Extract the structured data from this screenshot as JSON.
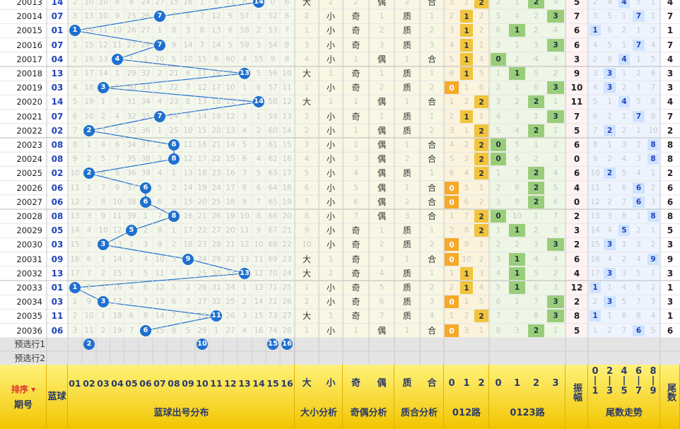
{
  "header": {
    "sort_label": "排序",
    "period_label": "期号",
    "blue_label": "蓝球",
    "blue_dist_label": "蓝球出号分布",
    "size_label": "大小分析",
    "oddeven_label": "奇偶分析",
    "primecomp_label": "质合分析",
    "route012_label": "012路",
    "route0123_label": "0123路",
    "amplitude_label": "振幅",
    "tail_trend_label": "尾数走势",
    "tail_label": "尾数",
    "ball_numbers": [
      "01",
      "02",
      "03",
      "04",
      "05",
      "06",
      "07",
      "08",
      "09",
      "10",
      "11",
      "12",
      "13",
      "14",
      "15",
      "16"
    ],
    "size_cols": [
      "大",
      "小"
    ],
    "oddeven_cols": [
      "奇",
      "偶"
    ],
    "primecomp_cols": [
      "质",
      "合"
    ],
    "route012_cols": [
      "0",
      "1",
      "2"
    ],
    "route0123_cols": [
      "0",
      "1",
      "2",
      "3"
    ],
    "tail_groups": [
      [
        "0",
        "1"
      ],
      [
        "2",
        "3"
      ],
      [
        "4",
        "5"
      ],
      [
        "6",
        "7"
      ],
      [
        "8",
        "9"
      ]
    ]
  },
  "rows": [
    {
      "period": "20013",
      "blue": "14",
      "nums": [
        2,
        10,
        10,
        8,
        8,
        24,
        27,
        15,
        16,
        1,
        6,
        11,
        8,
        14,
        0,
        6
      ],
      "size": "大",
      "sz_miss": "2",
      "oe": "偶",
      "oe_miss": "2",
      "pc": "合",
      "pc_miss": "2",
      "r012": [
        3,
        1,
        2
      ],
      "r0123": [
        2,
        1,
        2,
        9
      ],
      "amp": "5",
      "tails": [
        2,
        4,
        4,
        5,
        1
      ],
      "tail": "4"
    },
    {
      "period": "20014",
      "blue": "07",
      "nums": [
        3,
        13,
        10,
        9,
        25,
        26,
        0,
        7,
        8,
        7,
        12,
        5,
        57,
        1,
        52,
        6
      ],
      "size": "小",
      "sz_miss": "2",
      "oe": "奇",
      "oe_miss": "1",
      "pc": "质",
      "pc_miss": "1",
      "r012": [
        2,
        1,
        2
      ],
      "r0123": [
        5,
        4,
        2,
        3
      ],
      "amp": "7",
      "tails": [
        3,
        5,
        1,
        7,
        1
      ],
      "tail": "7"
    },
    {
      "period": "20015",
      "blue": "01",
      "nums": [
        0,
        14,
        11,
        10,
        26,
        27,
        1,
        8,
        3,
        8,
        13,
        6,
        58,
        2,
        53,
        7
      ],
      "size": "小",
      "sz_miss": "1",
      "oe": "奇",
      "oe_miss": "2",
      "pc": "质",
      "pc_miss": "2",
      "r012": [
        3,
        1,
        2
      ],
      "r0123": [
        6,
        1,
        2,
        4
      ],
      "amp": "6",
      "tails": [
        1,
        6,
        2,
        1,
        3
      ],
      "tail": "1"
    },
    {
      "period": "20016",
      "blue": "07",
      "nums": [
        1,
        15,
        12,
        11,
        27,
        28,
        0,
        9,
        14,
        7,
        14,
        5,
        59,
        3,
        54,
        8
      ],
      "size": "小",
      "sz_miss": "3",
      "oe": "奇",
      "oe_miss": "3",
      "pc": "质",
      "pc_miss": "3",
      "r012": [
        4,
        1,
        1
      ],
      "r0123": [
        3,
        1,
        3,
        3
      ],
      "amp": "6",
      "tails": [
        4,
        5,
        1,
        7,
        4
      ],
      "tail": "7"
    },
    {
      "period": "20017",
      "blue": "04",
      "nums": [
        2,
        16,
        13,
        0,
        1,
        1,
        20,
        5,
        10,
        15,
        8,
        60,
        4,
        55,
        9,
        8
      ],
      "size": "小",
      "sz_miss": "4",
      "oe": "偶",
      "oe_miss": "1",
      "pc": "合",
      "pc_miss": "1",
      "r012": [
        5,
        1,
        4
      ],
      "r0123": [
        0,
        2,
        4,
        4
      ],
      "amp": "3",
      "tails": [
        2,
        8,
        4,
        1,
        5
      ],
      "tail": "4"
    },
    {
      "period": "20018",
      "blue": "13",
      "nums": [
        3,
        17,
        14,
        1,
        29,
        32,
        2,
        21,
        6,
        11,
        16,
        9,
        0,
        5,
        56,
        10
      ],
      "size": "大",
      "sz_miss": "1",
      "oe": "奇",
      "oe_miss": "1",
      "pc": "质",
      "pc_miss": "1",
      "r012": [
        6,
        1,
        5
      ],
      "r0123": [
        1,
        1,
        5,
        2
      ],
      "amp": "9",
      "tails": [
        3,
        3,
        1,
        2,
        6
      ],
      "tail": "3"
    },
    {
      "period": "20019",
      "blue": "03",
      "nums": [
        4,
        18,
        0,
        2,
        30,
        33,
        3,
        22,
        7,
        12,
        17,
        10,
        1,
        6,
        57,
        11
      ],
      "size": "小",
      "sz_miss": "1",
      "oe": "奇",
      "oe_miss": "2",
      "pc": "质",
      "pc_miss": "2",
      "r012": [
        0,
        1,
        6
      ],
      "r0123": [
        2,
        1,
        6,
        3
      ],
      "amp": "10",
      "tails": [
        4,
        3,
        2,
        3,
        7
      ],
      "tail": "3"
    },
    {
      "period": "20020",
      "blue": "14",
      "nums": [
        5,
        19,
        1,
        3,
        31,
        34,
        4,
        23,
        8,
        13,
        18,
        11,
        2,
        0,
        58,
        12
      ],
      "size": "大",
      "sz_miss": "1",
      "oe": "偶",
      "oe_miss": "1",
      "pc": "合",
      "pc_miss": "1",
      "r012": [
        1,
        2,
        2
      ],
      "r0123": [
        3,
        2,
        2,
        1
      ],
      "amp": "11",
      "tails": [
        5,
        1,
        4,
        5,
        8
      ],
      "tail": "4"
    },
    {
      "period": "20021",
      "blue": "07",
      "nums": [
        6,
        20,
        2,
        4,
        32,
        35,
        0,
        24,
        9,
        14,
        19,
        12,
        3,
        1,
        59,
        13
      ],
      "size": "小",
      "sz_miss": "1",
      "oe": "奇",
      "oe_miss": "1",
      "pc": "质",
      "pc_miss": "1",
      "r012": [
        2,
        1,
        1
      ],
      "r0123": [
        4,
        3,
        1,
        3
      ],
      "amp": "7",
      "tails": [
        6,
        2,
        1,
        7,
        9
      ],
      "tail": "7"
    },
    {
      "period": "20022",
      "blue": "02",
      "nums": [
        7,
        0,
        3,
        5,
        33,
        36,
        1,
        25,
        10,
        15,
        20,
        13,
        4,
        2,
        60,
        14
      ],
      "size": "小",
      "sz_miss": "2",
      "oe": "偶",
      "oe_miss": "1",
      "pc": "质",
      "pc_miss": "2",
      "r012": [
        3,
        1,
        2
      ],
      "r0123": [
        5,
        4,
        2,
        1
      ],
      "amp": "5",
      "tails": [
        7,
        2,
        2,
        1,
        10
      ],
      "tail": "2"
    },
    {
      "period": "20023",
      "blue": "08",
      "nums": [
        8,
        1,
        4,
        6,
        34,
        37,
        2,
        0,
        11,
        16,
        21,
        14,
        5,
        3,
        61,
        15
      ],
      "size": "小",
      "sz_miss": "3",
      "oe": "偶",
      "oe_miss": "2",
      "pc": "合",
      "pc_miss": "1",
      "r012": [
        4,
        2,
        2
      ],
      "r0123": [
        0,
        5,
        1,
        2
      ],
      "amp": "6",
      "tails": [
        8,
        1,
        3,
        2,
        8
      ],
      "tail": "8"
    },
    {
      "period": "20024",
      "blue": "08",
      "nums": [
        9,
        2,
        5,
        7,
        35,
        38,
        3,
        0,
        12,
        17,
        22,
        15,
        6,
        4,
        62,
        16
      ],
      "size": "小",
      "sz_miss": "4",
      "oe": "偶",
      "oe_miss": "3",
      "pc": "合",
      "pc_miss": "2",
      "r012": [
        5,
        3,
        2
      ],
      "r0123": [
        0,
        6,
        2,
        3
      ],
      "amp": "0",
      "tails": [
        9,
        2,
        4,
        3,
        8
      ],
      "tail": "8"
    },
    {
      "period": "20025",
      "blue": "02",
      "nums": [
        10,
        0,
        6,
        8,
        36,
        39,
        4,
        1,
        13,
        18,
        23,
        16,
        7,
        5,
        63,
        17
      ],
      "size": "小",
      "sz_miss": "5",
      "oe": "偶",
      "oe_miss": "4",
      "pc": "质",
      "pc_miss": "1",
      "r012": [
        6,
        4,
        2
      ],
      "r0123": [
        1,
        7,
        2,
        4
      ],
      "amp": "6",
      "tails": [
        10,
        2,
        5,
        4,
        1
      ],
      "tail": "2"
    },
    {
      "period": "20026",
      "blue": "06",
      "nums": [
        11,
        1,
        7,
        9,
        37,
        0,
        5,
        2,
        14,
        19,
        24,
        17,
        8,
        6,
        64,
        18
      ],
      "size": "小",
      "sz_miss": "6",
      "oe": "偶",
      "oe_miss": "5",
      "pc": "合",
      "pc_miss": "1",
      "r012": [
        0,
        5,
        1
      ],
      "r0123": [
        2,
        8,
        2,
        5
      ],
      "amp": "4",
      "tails": [
        11,
        1,
        6,
        6,
        2
      ],
      "tail": "6"
    },
    {
      "period": "20027",
      "blue": "06",
      "nums": [
        12,
        2,
        8,
        10,
        38,
        0,
        6,
        3,
        15,
        20,
        25,
        18,
        9,
        7,
        65,
        19
      ],
      "size": "小",
      "sz_miss": "7",
      "oe": "偶",
      "oe_miss": "6",
      "pc": "合",
      "pc_miss": "2",
      "r012": [
        0,
        6,
        2
      ],
      "r0123": [
        3,
        9,
        2,
        6
      ],
      "amp": "0",
      "tails": [
        12,
        2,
        7,
        6,
        3
      ],
      "tail": "6"
    },
    {
      "period": "20028",
      "blue": "08",
      "nums": [
        13,
        3,
        9,
        11,
        39,
        1,
        7,
        0,
        16,
        21,
        26,
        19,
        10,
        8,
        66,
        20
      ],
      "size": "小",
      "sz_miss": "8",
      "oe": "偶",
      "oe_miss": "7",
      "pc": "合",
      "pc_miss": "3",
      "r012": [
        1,
        7,
        2
      ],
      "r0123": [
        0,
        10,
        1,
        7
      ],
      "amp": "2",
      "tails": [
        13,
        3,
        8,
        1,
        8
      ],
      "tail": "8"
    },
    {
      "period": "20029",
      "blue": "05",
      "nums": [
        14,
        4,
        10,
        12,
        0,
        2,
        8,
        1,
        17,
        22,
        27,
        20,
        11,
        9,
        67,
        21
      ],
      "size": "小",
      "sz_miss": "9",
      "oe": "奇",
      "oe_miss": "1",
      "pc": "质",
      "pc_miss": "1",
      "r012": [
        2,
        8,
        2
      ],
      "r0123": [
        1,
        1,
        2,
        8
      ],
      "amp": "3",
      "tails": [
        14,
        4,
        5,
        2,
        1
      ],
      "tail": "5"
    },
    {
      "period": "20030",
      "blue": "03",
      "nums": [
        15,
        5,
        0,
        13,
        1,
        3,
        9,
        2,
        18,
        23,
        28,
        21,
        12,
        10,
        68,
        22
      ],
      "size": "小",
      "sz_miss": "10",
      "oe": "奇",
      "oe_miss": "2",
      "pc": "质",
      "pc_miss": "2",
      "r012": [
        0,
        9,
        1
      ],
      "r0123": [
        2,
        2,
        3,
        3
      ],
      "amp": "2",
      "tails": [
        15,
        3,
        1,
        3,
        2
      ],
      "tail": "3"
    },
    {
      "period": "20031",
      "blue": "09",
      "nums": [
        16,
        6,
        1,
        14,
        2,
        4,
        10,
        3,
        0,
        24,
        29,
        22,
        13,
        11,
        69,
        23
      ],
      "size": "大",
      "sz_miss": "1",
      "oe": "奇",
      "oe_miss": "3",
      "pc": "合",
      "pc_miss": "1",
      "r012": [
        0,
        10,
        2
      ],
      "r0123": [
        3,
        1,
        4,
        4
      ],
      "amp": "6",
      "tails": [
        16,
        4,
        2,
        4,
        9
      ],
      "tail": "9"
    },
    {
      "period": "20032",
      "blue": "13",
      "nums": [
        17,
        7,
        2,
        15,
        3,
        5,
        11,
        4,
        1,
        25,
        30,
        23,
        0,
        12,
        70,
        24
      ],
      "size": "大",
      "sz_miss": "2",
      "oe": "奇",
      "oe_miss": "4",
      "pc": "质",
      "pc_miss": "1",
      "r012": [
        1,
        1,
        3
      ],
      "r0123": [
        4,
        1,
        5,
        2
      ],
      "amp": "4",
      "tails": [
        17,
        3,
        3,
        5,
        1
      ],
      "tail": "3"
    },
    {
      "period": "20033",
      "blue": "01",
      "nums": [
        0,
        8,
        3,
        16,
        4,
        6,
        12,
        5,
        2,
        26,
        31,
        24,
        1,
        13,
        71,
        25
      ],
      "size": "小",
      "sz_miss": "1",
      "oe": "奇",
      "oe_miss": "5",
      "pc": "质",
      "pc_miss": "2",
      "r012": [
        2,
        1,
        4
      ],
      "r0123": [
        5,
        1,
        6,
        3
      ],
      "amp": "12",
      "tails": [
        1,
        1,
        4,
        6,
        2
      ],
      "tail": "1"
    },
    {
      "period": "20034",
      "blue": "03",
      "nums": [
        1,
        9,
        0,
        17,
        5,
        7,
        13,
        6,
        3,
        27,
        32,
        25,
        2,
        14,
        72,
        26
      ],
      "size": "小",
      "sz_miss": "2",
      "oe": "奇",
      "oe_miss": "6",
      "pc": "质",
      "pc_miss": "3",
      "r012": [
        0,
        1,
        5
      ],
      "r0123": [
        6,
        1,
        7,
        3
      ],
      "amp": "2",
      "tails": [
        2,
        3,
        5,
        7,
        3
      ],
      "tail": "3"
    },
    {
      "period": "20035",
      "blue": "11",
      "nums": [
        2,
        10,
        1,
        18,
        6,
        8,
        14,
        7,
        4,
        28,
        0,
        26,
        3,
        15,
        73,
        27
      ],
      "size": "大",
      "sz_miss": "1",
      "oe": "奇",
      "oe_miss": "7",
      "pc": "质",
      "pc_miss": "4",
      "r012": [
        1,
        2,
        2
      ],
      "r0123": [
        7,
        2,
        8,
        3
      ],
      "amp": "8",
      "tails": [
        1,
        1,
        6,
        8,
        4
      ],
      "tail": "1"
    },
    {
      "period": "20036",
      "blue": "06",
      "nums": [
        3,
        11,
        2,
        19,
        7,
        0,
        15,
        8,
        5,
        29,
        1,
        27,
        4,
        16,
        74,
        28
      ],
      "size": "小",
      "sz_miss": "1",
      "oe": "偶",
      "oe_miss": "1",
      "pc": "合",
      "pc_miss": "1",
      "r012": [
        0,
        3,
        1
      ],
      "r0123": [
        8,
        3,
        2,
        1
      ],
      "amp": "5",
      "tails": [
        1,
        2,
        7,
        6,
        5
      ],
      "tail": "6"
    }
  ],
  "preselect1_label": "预选行1",
  "preselect2_label": "预选行2",
  "preselect1_balls": [
    "02",
    "10",
    "15",
    "16"
  ]
}
